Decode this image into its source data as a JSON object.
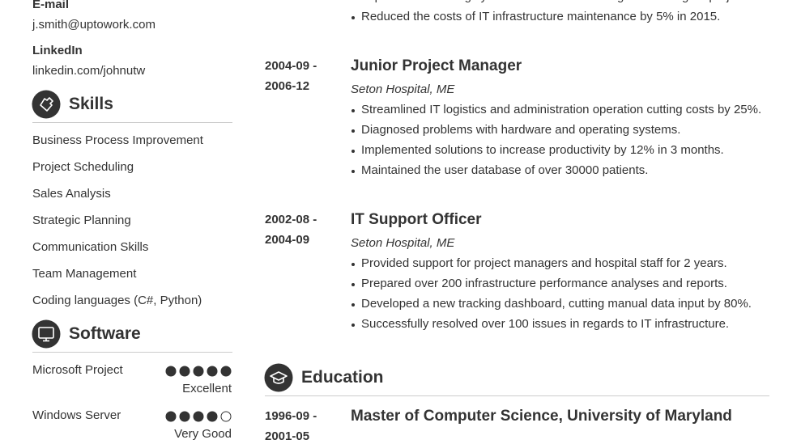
{
  "contact": [
    {
      "label": "E-mail",
      "value": "j.smith@uptowork.com"
    },
    {
      "label": "LinkedIn",
      "value": "linkedin.com/johnutw"
    }
  ],
  "skills": {
    "title": "Skills",
    "items": [
      "Business Process Improvement",
      "Project Scheduling",
      "Sales Analysis",
      "Strategic Planning",
      "Communication Skills",
      "Team Management",
      "Coding languages (C#, Python)"
    ]
  },
  "software": {
    "title": "Software",
    "items": [
      {
        "name": "Microsoft Project",
        "level": 5,
        "scale": 5,
        "rating": "Excellent"
      },
      {
        "name": "Windows Server",
        "level": 4,
        "scale": 5,
        "rating": "Very Good"
      }
    ]
  },
  "experience": [
    {
      "bullets": [
        "Implemented the highly successful Lean Training and Six Sigma projects.",
        "Reduced the costs of IT infrastructure maintenance by 5% in 2015."
      ]
    },
    {
      "date_start": "2004-09 -",
      "date_end": "2006-12",
      "title": "Junior Project Manager",
      "company": "Seton Hospital, ME",
      "bullets": [
        "Streamlined IT logistics and administration operation cutting costs by 25%.",
        "Diagnosed problems with hardware and operating systems.",
        "Implemented solutions to increase productivity by 12% in 3 months.",
        "Maintained the user database of over 30000 patients."
      ]
    },
    {
      "date_start": "2002-08 -",
      "date_end": "2004-09",
      "title": "IT Support Officer",
      "company": "Seton Hospital, ME",
      "bullets": [
        "Provided support for project managers and hospital staff for 2 years.",
        "Prepared over 200 infrastructure performance analyses and reports.",
        "Developed a new tracking dashboard, cutting manual data input by 80%.",
        "Successfully resolved over 100 issues in regards to IT infrastructure."
      ]
    }
  ],
  "education": {
    "title": "Education",
    "entries": [
      {
        "date_start": "1996-09 -",
        "date_end": "2001-05",
        "title": "Master of Computer Science, University of Maryland"
      }
    ]
  }
}
